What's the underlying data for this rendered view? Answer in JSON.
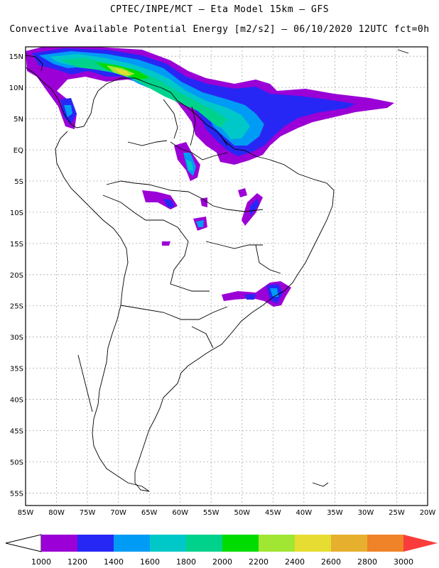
{
  "header": {
    "line1": "CPTEC/INPE/MCT –  Eta Model 15km – GFS",
    "line2": "Convective Available Potential Energy [m2/s2] – 06/10/2020 12UTC fct=0h"
  },
  "map": {
    "lon_ticks": [
      "85W",
      "80W",
      "75W",
      "70W",
      "65W",
      "60W",
      "55W",
      "50W",
      "45W",
      "40W",
      "35W",
      "30W",
      "25W",
      "20W"
    ],
    "lat_ticks": [
      "15N",
      "10N",
      "5N",
      "EQ",
      "5S",
      "10S",
      "15S",
      "20S",
      "25S",
      "30S",
      "35S",
      "40S",
      "45S",
      "50S",
      "55S"
    ],
    "lon_range": [
      -85,
      -20
    ],
    "lat_range": [
      -57,
      16.5
    ],
    "grid": true
  },
  "colorbar": {
    "labels": [
      "1000",
      "1200",
      "1400",
      "1600",
      "1800",
      "2000",
      "2200",
      "2400",
      "2600",
      "2800",
      "3000"
    ],
    "colors": [
      "#9b00d6",
      "#2727f5",
      "#009bf5",
      "#00c8c8",
      "#00d28c",
      "#00dc00",
      "#a0e632",
      "#e6dc32",
      "#e6af2d",
      "#f08228",
      "#fa3c3c"
    ]
  }
}
